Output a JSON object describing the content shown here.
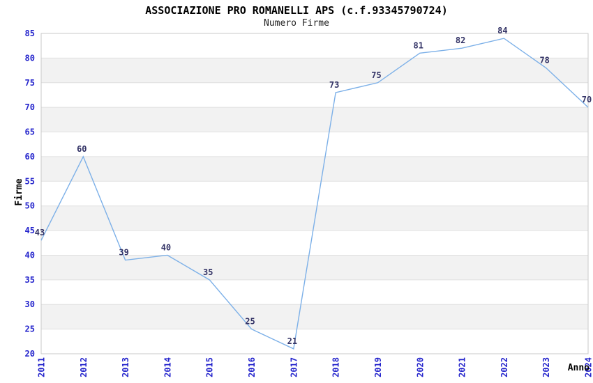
{
  "chart_data": {
    "type": "line",
    "title": "ASSOCIAZIONE PRO ROMANELLI APS (c.f.93345790724)",
    "subtitle": "Numero Firme",
    "xlabel": "Anno",
    "ylabel": "Firme",
    "x": [
      2011,
      2012,
      2013,
      2014,
      2015,
      2016,
      2017,
      2018,
      2019,
      2020,
      2021,
      2022,
      2023,
      2024
    ],
    "values": [
      43,
      60,
      39,
      40,
      35,
      25,
      21,
      73,
      75,
      81,
      82,
      84,
      78,
      70
    ],
    "ylim": [
      20,
      85
    ],
    "ytick_step": 5,
    "grid": "horizontal-bands-alternating",
    "legend": "none",
    "colors": {
      "line": "#7CB0E8",
      "data_label": "#333366",
      "tick_label": "#2424CC",
      "band_gray": "#F2F2F2",
      "band_white": "#FFFFFF",
      "gridline": "#E0E0E0",
      "border": "#C9C9C9",
      "title": "#000000"
    }
  }
}
